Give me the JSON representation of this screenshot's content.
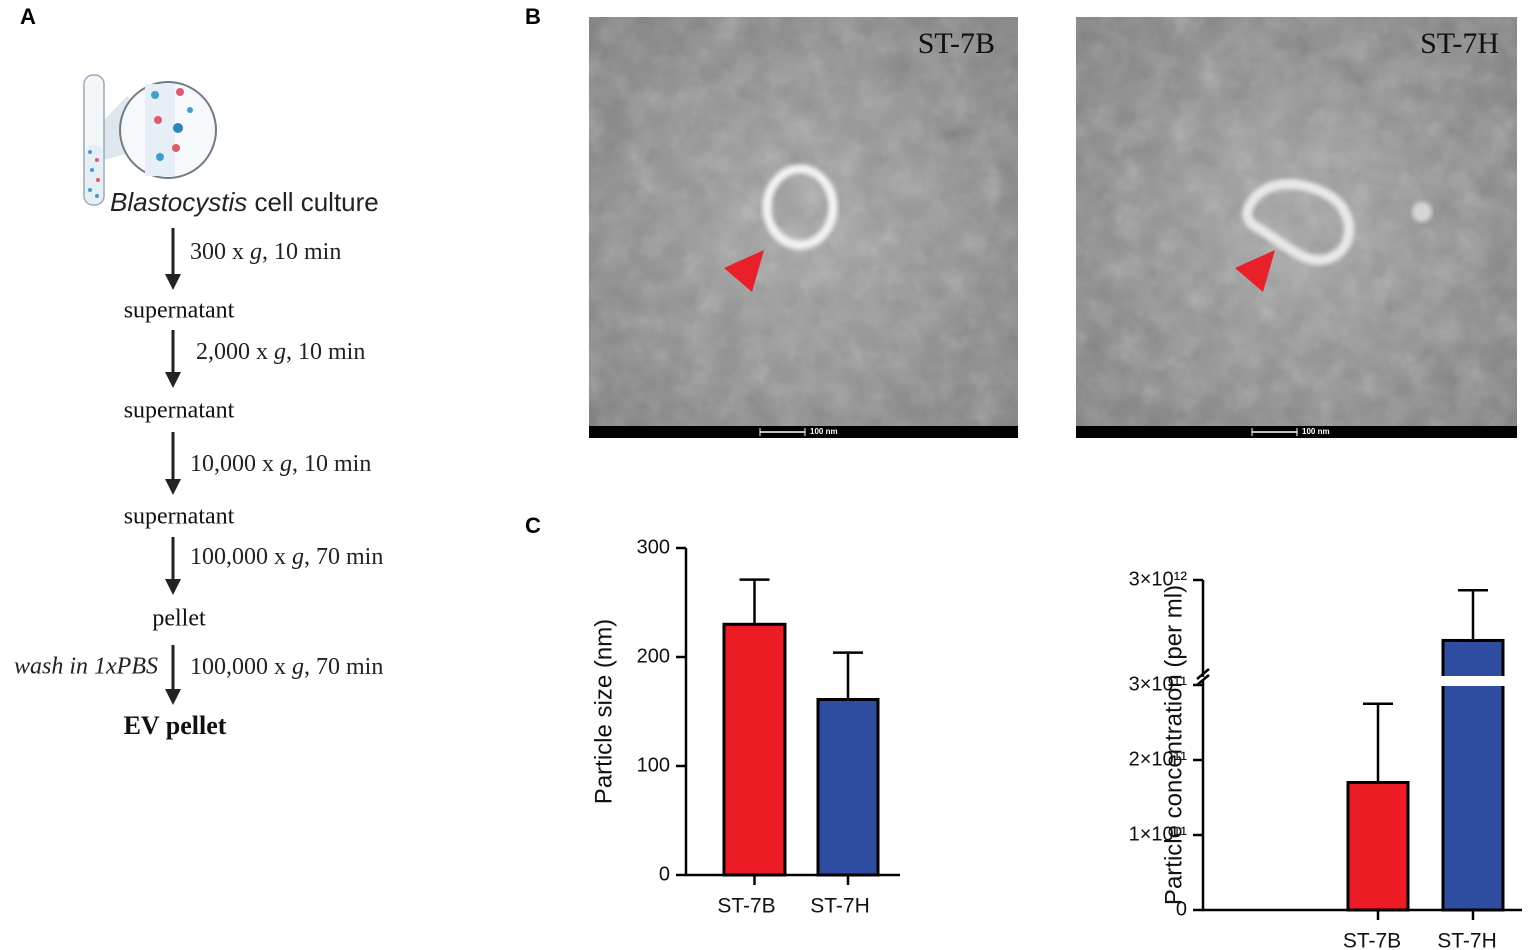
{
  "panel_labels": [
    "A",
    "B",
    "C"
  ],
  "flow": {
    "source": [
      "Blastocystis",
      " cell culture"
    ],
    "steps": [
      {
        "condition": [
          "300 x ",
          "g",
          ", 10 min"
        ],
        "product": "supernatant"
      },
      {
        "condition": [
          "2,000 x ",
          "g",
          ", 10 min"
        ],
        "product": "supernatant"
      },
      {
        "condition": [
          "10,000 x ",
          "g",
          ", 10 min"
        ],
        "product": "supernatant"
      },
      {
        "condition": [
          "100,000 x ",
          "g",
          ", 70 min"
        ],
        "product": "pellet"
      },
      {
        "condition": [
          "100,000 x ",
          "g",
          ", 70 min"
        ],
        "note": "wash in 1xPBS",
        "product": "EV pellet"
      }
    ]
  },
  "micrographs": [
    {
      "label": "ST-7B",
      "scale_bar": "100 nm"
    },
    {
      "label": "ST-7H",
      "scale_bar": "100 nm"
    }
  ],
  "chart_data": [
    {
      "type": "bar",
      "ylabel": "Particle size (nm)",
      "categories": [
        "ST-7B",
        "ST-7H"
      ],
      "values": [
        230,
        161
      ],
      "errors": [
        41,
        43
      ],
      "colors": [
        "#ed1c24",
        "#2e4da0"
      ],
      "ylim": [
        0,
        300
      ],
      "yticks": [
        0,
        100,
        200,
        300
      ]
    },
    {
      "type": "bar",
      "ylabel": "Particle concentration (per ml)",
      "categories": [
        "ST-7B",
        "ST-7H"
      ],
      "values": [
        170000000000,
        1700000000000
      ],
      "errors": [
        105000000000,
        1080000000000
      ],
      "colors": [
        "#ed1c24",
        "#2e4da0"
      ],
      "ylim": [
        0,
        3000000000000
      ],
      "ybreak": [
        300000000000,
        1000000000000
      ],
      "yticks": [
        0,
        {
          "value": 100000000000,
          "label": "1×10¹¹"
        },
        {
          "value": 200000000000,
          "label": "2×10¹¹"
        },
        {
          "value": 300000000000,
          "label": "3×10¹¹"
        },
        {
          "value": 3000000000000,
          "label": "3×10¹²"
        }
      ]
    }
  ]
}
